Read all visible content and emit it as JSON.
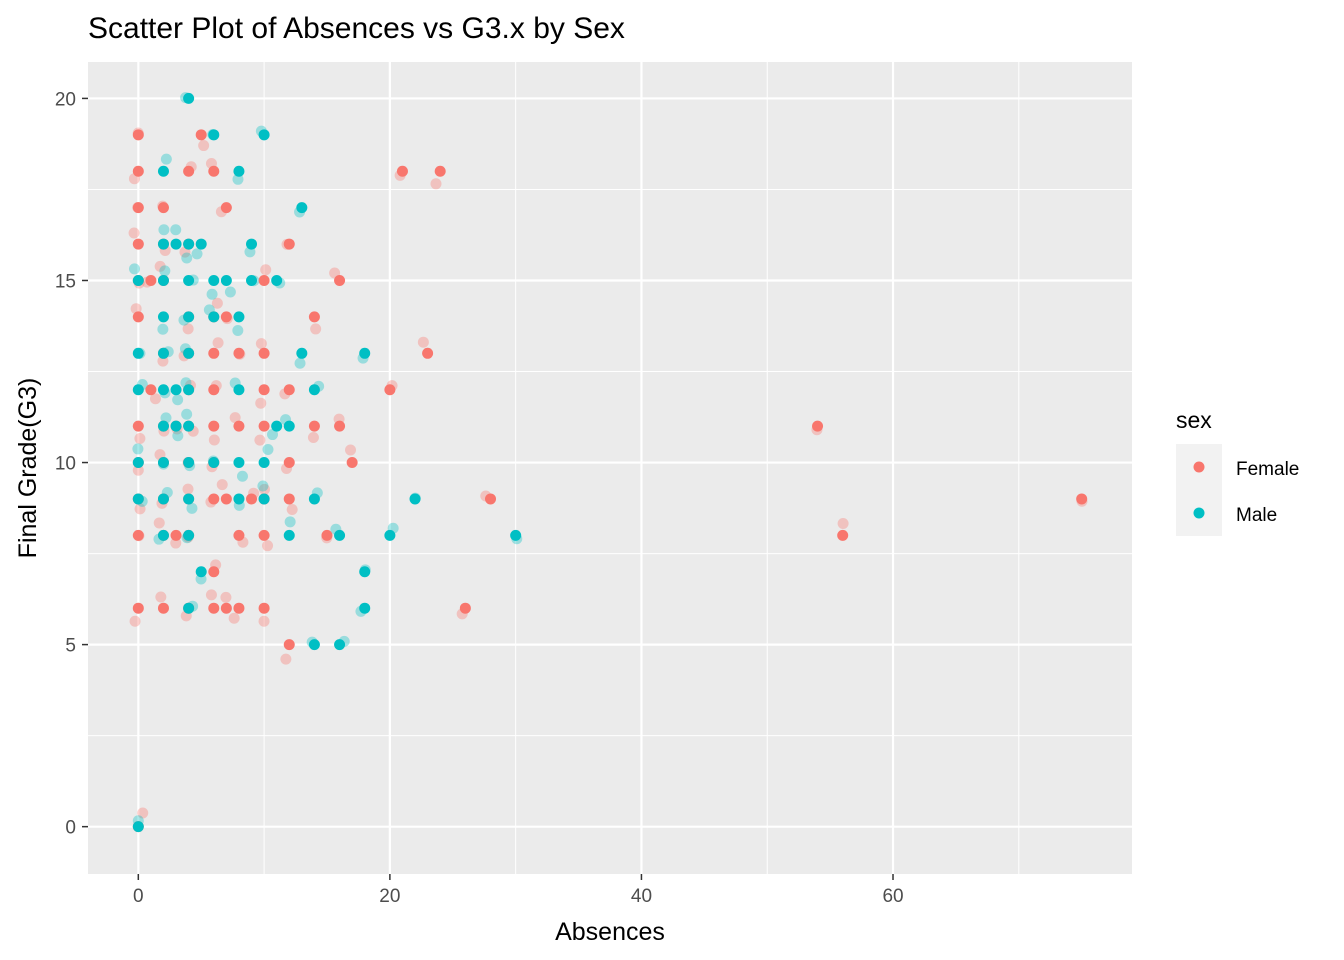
{
  "chart_data": {
    "type": "scatter",
    "title": "Scatter Plot of Absences vs G3.x by Sex",
    "xlabel": "Absences",
    "ylabel": "Final Grade(G3)",
    "xlim": [
      -4,
      79
    ],
    "ylim": [
      -1.3,
      21.0
    ],
    "x_ticks": [
      0,
      20,
      40,
      60
    ],
    "x_tick_labels": [
      "0",
      "20",
      "40",
      "60"
    ],
    "y_ticks": [
      0,
      5,
      10,
      15,
      20
    ],
    "y_tick_labels": [
      "0",
      "5",
      "10",
      "15",
      "20"
    ],
    "grid": true,
    "legend": {
      "title": "sex",
      "placement": "right",
      "entries": [
        "Female",
        "Male"
      ]
    },
    "colors": {
      "Female": "#F8766D",
      "Male": "#00BFC4",
      "panel": "#EBEBEB",
      "grid": "#FFFFFF"
    },
    "series": [
      {
        "name": "Female",
        "points": [
          [
            0,
            19
          ],
          [
            0,
            18
          ],
          [
            0,
            17
          ],
          [
            0,
            16
          ],
          [
            0,
            15
          ],
          [
            0,
            14
          ],
          [
            0,
            11
          ],
          [
            0,
            10
          ],
          [
            0,
            9
          ],
          [
            0,
            8
          ],
          [
            0,
            6
          ],
          [
            0,
            0
          ],
          [
            1,
            15
          ],
          [
            1,
            12
          ],
          [
            2,
            17
          ],
          [
            2,
            16
          ],
          [
            2,
            15
          ],
          [
            2,
            13
          ],
          [
            2,
            11
          ],
          [
            2,
            10
          ],
          [
            2,
            9
          ],
          [
            2,
            8
          ],
          [
            2,
            6
          ],
          [
            3,
            8
          ],
          [
            3,
            11
          ],
          [
            4,
            18
          ],
          [
            4,
            16
          ],
          [
            4,
            14
          ],
          [
            4,
            13
          ],
          [
            4,
            12
          ],
          [
            4,
            11
          ],
          [
            4,
            10
          ],
          [
            4,
            9
          ],
          [
            4,
            8
          ],
          [
            4,
            6
          ],
          [
            5,
            19
          ],
          [
            6,
            18
          ],
          [
            6,
            14
          ],
          [
            6,
            13
          ],
          [
            6,
            12
          ],
          [
            6,
            11
          ],
          [
            6,
            10
          ],
          [
            6,
            9
          ],
          [
            6,
            7
          ],
          [
            6,
            6
          ],
          [
            7,
            17
          ],
          [
            7,
            14
          ],
          [
            7,
            9
          ],
          [
            7,
            6
          ],
          [
            8,
            13
          ],
          [
            8,
            11
          ],
          [
            8,
            8
          ],
          [
            8,
            6
          ],
          [
            9,
            9
          ],
          [
            10,
            15
          ],
          [
            10,
            13
          ],
          [
            10,
            12
          ],
          [
            10,
            11
          ],
          [
            10,
            9
          ],
          [
            10,
            8
          ],
          [
            10,
            6
          ],
          [
            12,
            16
          ],
          [
            12,
            12
          ],
          [
            12,
            10
          ],
          [
            12,
            9
          ],
          [
            12,
            5
          ],
          [
            14,
            14
          ],
          [
            14,
            11
          ],
          [
            15,
            8
          ],
          [
            16,
            15
          ],
          [
            16,
            11
          ],
          [
            17,
            10
          ],
          [
            20,
            12
          ],
          [
            21,
            18
          ],
          [
            23,
            13
          ],
          [
            24,
            18
          ],
          [
            26,
            6
          ],
          [
            28,
            9
          ],
          [
            54,
            11
          ],
          [
            56,
            8
          ],
          [
            75,
            9
          ]
        ]
      },
      {
        "name": "Male",
        "points": [
          [
            0,
            15
          ],
          [
            0,
            13
          ],
          [
            0,
            12
          ],
          [
            0,
            10
          ],
          [
            0,
            9
          ],
          [
            0,
            0
          ],
          [
            2,
            18
          ],
          [
            2,
            16
          ],
          [
            2,
            15
          ],
          [
            2,
            14
          ],
          [
            2,
            13
          ],
          [
            2,
            12
          ],
          [
            2,
            11
          ],
          [
            2,
            10
          ],
          [
            2,
            9
          ],
          [
            2,
            8
          ],
          [
            3,
            16
          ],
          [
            3,
            12
          ],
          [
            3,
            11
          ],
          [
            4,
            20
          ],
          [
            4,
            16
          ],
          [
            4,
            15
          ],
          [
            4,
            14
          ],
          [
            4,
            13
          ],
          [
            4,
            12
          ],
          [
            4,
            11
          ],
          [
            4,
            10
          ],
          [
            4,
            9
          ],
          [
            4,
            8
          ],
          [
            4,
            6
          ],
          [
            5,
            16
          ],
          [
            5,
            7
          ],
          [
            6,
            19
          ],
          [
            6,
            15
          ],
          [
            6,
            14
          ],
          [
            6,
            10
          ],
          [
            7,
            15
          ],
          [
            8,
            18
          ],
          [
            8,
            14
          ],
          [
            8,
            12
          ],
          [
            8,
            10
          ],
          [
            8,
            9
          ],
          [
            9,
            16
          ],
          [
            9,
            15
          ],
          [
            10,
            19
          ],
          [
            10,
            10
          ],
          [
            10,
            9
          ],
          [
            11,
            15
          ],
          [
            11,
            11
          ],
          [
            12,
            11
          ],
          [
            12,
            8
          ],
          [
            13,
            17
          ],
          [
            13,
            13
          ],
          [
            14,
            12
          ],
          [
            14,
            9
          ],
          [
            14,
            5
          ],
          [
            16,
            8
          ],
          [
            16,
            5
          ],
          [
            18,
            13
          ],
          [
            18,
            7
          ],
          [
            18,
            6
          ],
          [
            20,
            8
          ],
          [
            22,
            9
          ],
          [
            30,
            8
          ]
        ]
      }
    ]
  }
}
